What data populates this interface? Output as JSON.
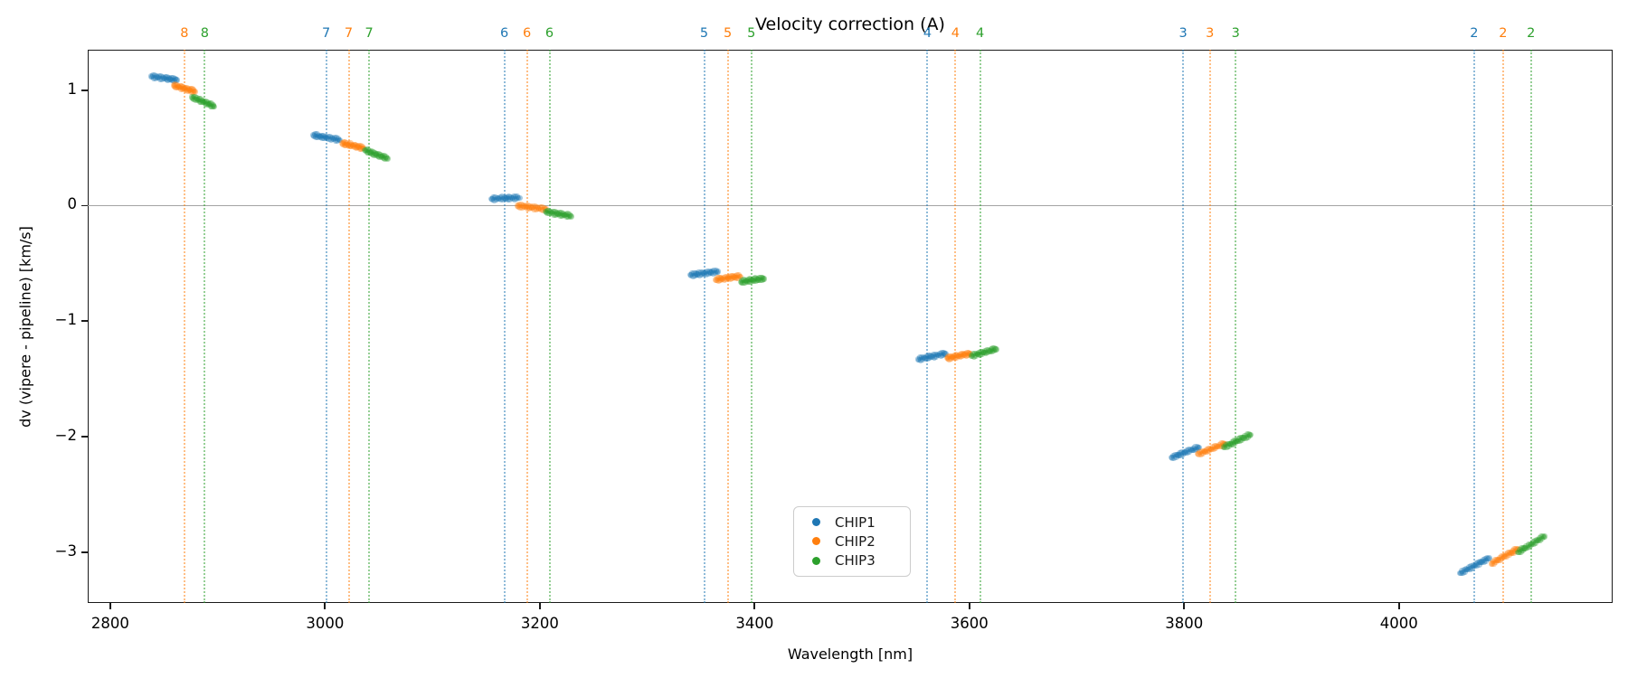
{
  "figure": {
    "title": "Velocity correction (A)"
  },
  "chart_data": {
    "type": "scatter",
    "title": "Velocity correction (A)",
    "xlabel": "Wavelength [nm]",
    "ylabel": "dv (vipere - pipeline) [km/s]",
    "xlim": [
      2779,
      4199
    ],
    "ylim": [
      -3.44,
      1.35
    ],
    "x_ticks": [
      2800,
      3000,
      3200,
      3400,
      3600,
      3800,
      4000
    ],
    "y_ticks": [
      1,
      0,
      -1,
      -2,
      -3
    ],
    "zero_line_y": 0,
    "grid": false,
    "legend": {
      "position": "lower center-left inside axes",
      "entries": [
        {
          "label": "CHIP1",
          "color": "#1f77b4"
        },
        {
          "label": "CHIP2",
          "color": "#ff7f0e"
        },
        {
          "label": "CHIP3",
          "color": "#2ca02c"
        }
      ]
    },
    "series": [
      {
        "name": "CHIP1",
        "color": "#1f77b4",
        "segments": [
          {
            "order": 8,
            "wavelength": [
              2838,
              2862
            ],
            "dv": [
              1.12,
              1.09
            ]
          },
          {
            "order": 7,
            "wavelength": [
              2989,
              3014
            ],
            "dv": [
              0.61,
              0.57
            ]
          },
          {
            "order": 6,
            "wavelength": [
              3155,
              3181
            ],
            "dv": [
              0.06,
              0.07
            ]
          },
          {
            "order": 5,
            "wavelength": [
              3340,
              3366
            ],
            "dv": [
              -0.6,
              -0.57
            ]
          },
          {
            "order": 4,
            "wavelength": [
              3552,
              3578
            ],
            "dv": [
              -1.33,
              -1.28
            ]
          },
          {
            "order": 3,
            "wavelength": [
              3788,
              3814
            ],
            "dv": [
              -2.18,
              -2.09
            ]
          },
          {
            "order": 2,
            "wavelength": [
              4057,
              4084
            ],
            "dv": [
              -3.18,
              -3.05
            ]
          }
        ]
      },
      {
        "name": "CHIP2",
        "color": "#ff7f0e",
        "segments": [
          {
            "order": 8,
            "wavelength": [
              2859,
              2879
            ],
            "dv": [
              1.04,
              0.99
            ]
          },
          {
            "order": 7,
            "wavelength": [
              3016,
              3036
            ],
            "dv": [
              0.54,
              0.5
            ]
          },
          {
            "order": 6,
            "wavelength": [
              3179,
              3206
            ],
            "dv": [
              0.0,
              -0.03
            ]
          },
          {
            "order": 5,
            "wavelength": [
              3364,
              3387
            ],
            "dv": [
              -0.64,
              -0.61
            ]
          },
          {
            "order": 4,
            "wavelength": [
              3579,
              3601
            ],
            "dv": [
              -1.32,
              -1.28
            ]
          },
          {
            "order": 3,
            "wavelength": [
              3813,
              3838
            ],
            "dv": [
              -2.15,
              -2.06
            ]
          },
          {
            "order": 2,
            "wavelength": [
              4086,
              4111
            ],
            "dv": [
              -3.1,
              -2.97
            ]
          }
        ]
      },
      {
        "name": "CHIP3",
        "color": "#2ca02c",
        "segments": [
          {
            "order": 8,
            "wavelength": [
              2876,
              2897
            ],
            "dv": [
              0.94,
              0.86
            ]
          },
          {
            "order": 7,
            "wavelength": [
              3037,
              3058
            ],
            "dv": [
              0.48,
              0.41
            ]
          },
          {
            "order": 6,
            "wavelength": [
              3205,
              3229
            ],
            "dv": [
              -0.05,
              -0.09
            ]
          },
          {
            "order": 5,
            "wavelength": [
              3387,
              3409
            ],
            "dv": [
              -0.66,
              -0.63
            ]
          },
          {
            "order": 4,
            "wavelength": [
              3602,
              3625
            ],
            "dv": [
              -1.3,
              -1.24
            ]
          },
          {
            "order": 3,
            "wavelength": [
              3837,
              3862
            ],
            "dv": [
              -2.09,
              -1.98
            ]
          },
          {
            "order": 2,
            "wavelength": [
              4111,
              4136
            ],
            "dv": [
              -3.0,
              -2.86
            ]
          }
        ]
      }
    ],
    "order_guides": [
      {
        "order": 8,
        "chip": "CHIP2",
        "wavelength": 2869
      },
      {
        "order": 8,
        "chip": "CHIP3",
        "wavelength": 2888
      },
      {
        "order": 7,
        "chip": "CHIP1",
        "wavelength": 3001
      },
      {
        "order": 7,
        "chip": "CHIP2",
        "wavelength": 3022
      },
      {
        "order": 7,
        "chip": "CHIP3",
        "wavelength": 3041
      },
      {
        "order": 6,
        "chip": "CHIP1",
        "wavelength": 3167
      },
      {
        "order": 6,
        "chip": "CHIP2",
        "wavelength": 3188
      },
      {
        "order": 6,
        "chip": "CHIP3",
        "wavelength": 3209
      },
      {
        "order": 5,
        "chip": "CHIP1",
        "wavelength": 3353
      },
      {
        "order": 5,
        "chip": "CHIP2",
        "wavelength": 3375
      },
      {
        "order": 5,
        "chip": "CHIP3",
        "wavelength": 3397
      },
      {
        "order": 4,
        "chip": "CHIP1",
        "wavelength": 3561
      },
      {
        "order": 4,
        "chip": "CHIP2",
        "wavelength": 3587
      },
      {
        "order": 4,
        "chip": "CHIP3",
        "wavelength": 3610
      },
      {
        "order": 3,
        "chip": "CHIP1",
        "wavelength": 3799
      },
      {
        "order": 3,
        "chip": "CHIP2",
        "wavelength": 3824
      },
      {
        "order": 3,
        "chip": "CHIP3",
        "wavelength": 3848
      },
      {
        "order": 2,
        "chip": "CHIP1",
        "wavelength": 4070
      },
      {
        "order": 2,
        "chip": "CHIP2",
        "wavelength": 4097
      },
      {
        "order": 2,
        "chip": "CHIP3",
        "wavelength": 4123
      }
    ]
  }
}
